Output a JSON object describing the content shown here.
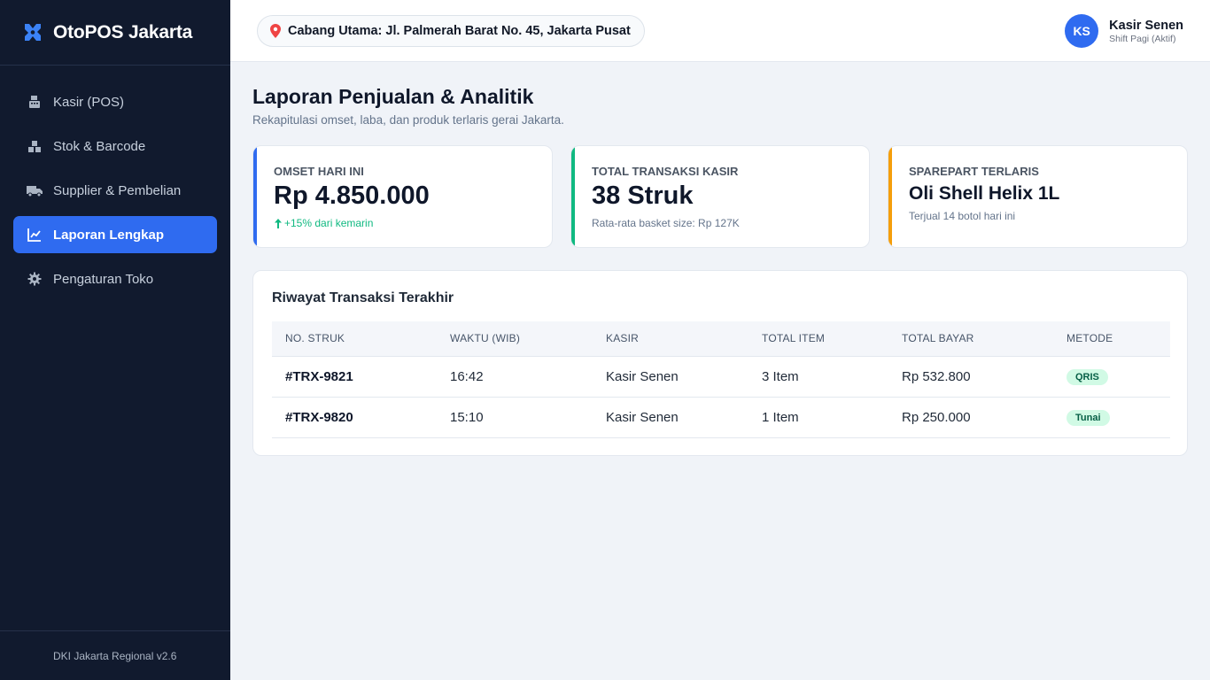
{
  "sidebar": {
    "brand": "OtoPOS Jakarta",
    "items": [
      {
        "label": "Kasir (POS)",
        "icon": "cash-register-icon"
      },
      {
        "label": "Stok & Barcode",
        "icon": "boxes-icon"
      },
      {
        "label": "Supplier & Pembelian",
        "icon": "truck-icon"
      },
      {
        "label": "Laporan Lengkap",
        "icon": "chart-line-icon",
        "active": true
      },
      {
        "label": "Pengaturan Toko",
        "icon": "gear-icon"
      }
    ],
    "footer": "DKI Jakarta Regional v2.6"
  },
  "topbar": {
    "branch": "Cabang Utama: Jl. Palmerah Barat No. 45, Jakarta Pusat",
    "user": {
      "initials": "KS",
      "name": "Kasir Senen",
      "shift": "Shift Pagi (Aktif)"
    }
  },
  "main": {
    "title": "Laporan Penjualan & Analitik",
    "subtitle": "Rekapitulasi omset, laba, dan produk terlaris gerai Jakarta.",
    "cards": [
      {
        "label": "OMSET HARI INI",
        "value": "Rp 4.850.000",
        "note": "+15% dari kemarin",
        "accent": "#2f6bf0"
      },
      {
        "label": "TOTAL TRANSAKSI KASIR",
        "value": "38 Struk",
        "note": "Rata-rata basket size: Rp 127K",
        "accent": "#10b981"
      },
      {
        "label": "SPAREPART TERLARIS",
        "value": "Oli Shell Helix 1L",
        "note": "Terjual 14 botol hari ini",
        "accent": "#f59e0b"
      }
    ],
    "table": {
      "title": "Riwayat Transaksi Terakhir",
      "columns": [
        "NO. STRUK",
        "WAKTU (WIB)",
        "KASIR",
        "TOTAL ITEM",
        "TOTAL BAYAR",
        "METODE"
      ],
      "rows": [
        {
          "id": "#TRX-9821",
          "time": "16:42",
          "cashier": "Kasir Senen",
          "items": "3 Item",
          "total": "Rp 532.800",
          "method": "QRIS"
        },
        {
          "id": "#TRX-9820",
          "time": "15:10",
          "cashier": "Kasir Senen",
          "items": "1 Item",
          "total": "Rp 250.000",
          "method": "Tunai"
        }
      ]
    }
  },
  "colors": {
    "brand_blue": "#2f6bf0",
    "sidebar_bg": "#111a2e",
    "success": "#10b981",
    "warning": "#f59e0b"
  }
}
